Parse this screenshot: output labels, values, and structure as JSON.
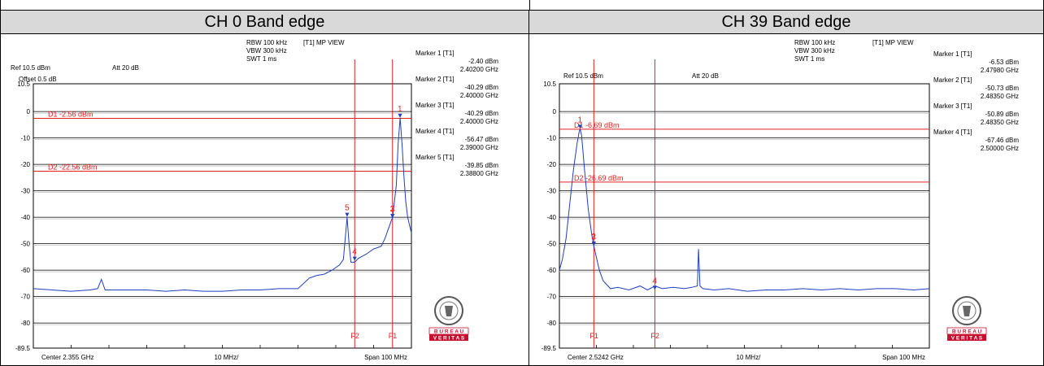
{
  "panels": [
    {
      "title": "CH 0 Band edge",
      "header": {
        "rbw": "RBW 100 kHz",
        "vbw": "VBW 300 kHz",
        "swt": "SWT 1 ms",
        "view": "[T1] MP VIEW",
        "ref": "Ref 10.5 dBm",
        "att": "Att 20 dB",
        "offset": "Offset 0.5 dB"
      },
      "footer": {
        "center": "Center 2.355 GHz",
        "div": "10 MHz/",
        "span": "Span 100 MHz"
      },
      "markers": [
        {
          "label": "Marker 1 [T1]",
          "level": "-2.40 dBm",
          "freq": "2.40200 GHz"
        },
        {
          "label": "Marker 2 [T1]",
          "level": "-40.29 dBm",
          "freq": "2.40000 GHz"
        },
        {
          "label": "Marker 3 [T1]",
          "level": "-40.29 dBm",
          "freq": "2.40000 GHz"
        },
        {
          "label": "Marker 4 [T1]",
          "level": "-56.47 dBm",
          "freq": "2.39000 GHz"
        },
        {
          "label": "Marker 5 [T1]",
          "level": "-39.85 dBm",
          "freq": "2.38800 GHz"
        }
      ],
      "logo": {
        "line1": "B U R E A U",
        "line2": "V E R I T A S",
        "seal": "BUREAU VERITAS 1828"
      }
    },
    {
      "title": "CH 39 Band edge",
      "header": {
        "rbw": "RBW 100 kHz",
        "vbw": "VBW 300 kHz",
        "swt": "SWT 1 ms",
        "view": "[T1] MP VIEW",
        "ref": "Ref 10.5 dBm",
        "att": "Att 20 dB",
        "offset": "Offset 0.5 dB"
      },
      "footer": {
        "center": "Center 2.5242 GHz",
        "div": "10 MHz/",
        "span": "Span 100 MHz"
      },
      "markers": [
        {
          "label": "Marker 1 [T1]",
          "level": "-6.53 dBm",
          "freq": "2.47980 GHz"
        },
        {
          "label": "Marker 2 [T1]",
          "level": "-50.73 dBm",
          "freq": "2.48350 GHz"
        },
        {
          "label": "Marker 3 [T1]",
          "level": "-50.89 dBm",
          "freq": "2.48350 GHz"
        },
        {
          "label": "Marker 4 [T1]",
          "level": "-67.46 dBm",
          "freq": "2.50000 GHz"
        }
      ],
      "logo": {
        "line1": "B U R E A U",
        "line2": "V E R I T A S",
        "seal": "BUREAU VERITAS 1828"
      }
    }
  ],
  "colors": {
    "trace": "#1f3fbf",
    "marker": "#e02020",
    "header": "#d9d9d9",
    "logo": "#c8102e"
  },
  "chart_data": [
    {
      "type": "line",
      "title": "CH 0 Band edge",
      "xlabel": "",
      "ylabel": "",
      "ylim": [
        -89.5,
        10.5
      ],
      "yticks": [
        "10.5",
        "0",
        "-10",
        "-20",
        "-30",
        "-40",
        "-50",
        "-60",
        "-70",
        "-80",
        "-89.5"
      ],
      "ytick_values": [
        10.5,
        0,
        -10,
        -20,
        -30,
        -40,
        -50,
        -60,
        -70,
        -80,
        -89.5
      ],
      "xlim": [
        2305,
        2405
      ],
      "x_unit": "MHz",
      "grid": true,
      "display_lines": [
        {
          "label": "D1 -2.56 dBm",
          "value": -2.56
        },
        {
          "label": "D2 -22.56 dBm",
          "value": -22.56
        }
      ],
      "freq_lines": [
        {
          "label": "F2",
          "x": 2390
        },
        {
          "label": "F1",
          "x": 2400
        }
      ],
      "marker_points": [
        {
          "label": "1",
          "x": 2402.0,
          "y": -2.4
        },
        {
          "label": "2",
          "x": 2400.0,
          "y": -40.29
        },
        {
          "label": "3",
          "x": 2400.0,
          "y": -40.29
        },
        {
          "label": "4",
          "x": 2390.0,
          "y": -56.47
        },
        {
          "label": "5",
          "x": 2388.0,
          "y": -39.85
        }
      ],
      "series": [
        {
          "x": [
            2305,
            2310,
            2315,
            2320,
            2322,
            2323,
            2324,
            2330,
            2335,
            2340,
            2345,
            2350,
            2355,
            2360,
            2365,
            2370,
            2375,
            2378,
            2380,
            2382,
            2384,
            2386,
            2387,
            2387.5,
            2388,
            2388.5,
            2389,
            2390,
            2391,
            2393,
            2395,
            2397,
            2398,
            2399,
            2400,
            2401,
            2401.5,
            2402,
            2402.5,
            2403,
            2403.5,
            2404,
            2405
          ],
          "y": [
            -67,
            -67.5,
            -68,
            -67.5,
            -67,
            -63.5,
            -67.5,
            -67.5,
            -67.5,
            -68,
            -67.5,
            -68,
            -68,
            -67.5,
            -67.5,
            -67,
            -67,
            -63,
            -62,
            -61.5,
            -60,
            -58,
            -56,
            -48,
            -40,
            -50,
            -57,
            -57,
            -55.5,
            -54,
            -52,
            -51,
            -48,
            -44,
            -40,
            -28,
            -12,
            -2.4,
            -12,
            -24,
            -34,
            -40,
            -46
          ]
        }
      ]
    },
    {
      "type": "line",
      "title": "CH 39 Band edge",
      "xlabel": "",
      "ylabel": "",
      "ylim": [
        -89.5,
        10.5
      ],
      "yticks": [
        "10.5",
        "0",
        "-10",
        "-20",
        "-30",
        "-40",
        "-50",
        "-60",
        "-70",
        "-80",
        "-89.5"
      ],
      "ytick_values": [
        10.5,
        0,
        -10,
        -20,
        -30,
        -40,
        -50,
        -60,
        -70,
        -80,
        -89.5
      ],
      "xlim": [
        2474.2,
        2574.2
      ],
      "x_unit": "MHz",
      "grid": true,
      "display_lines": [
        {
          "label": "D1 -6.69 dBm",
          "value": -6.69
        },
        {
          "label": "D2 -26.69 dBm",
          "value": -26.69
        }
      ],
      "freq_lines": [
        {
          "label": "F1",
          "x": 2483.5
        },
        {
          "label": "F2",
          "x": 2500
        }
      ],
      "marker_points": [
        {
          "label": "1",
          "x": 2479.8,
          "y": -6.53
        },
        {
          "label": "2",
          "x": 2483.5,
          "y": -50.73
        },
        {
          "label": "3",
          "x": 2483.5,
          "y": -50.89
        },
        {
          "label": "4",
          "x": 2500.0,
          "y": -67.46
        }
      ],
      "series": [
        {
          "x": [
            2474.2,
            2475,
            2476,
            2477,
            2478,
            2479,
            2479.5,
            2479.8,
            2480.2,
            2481,
            2482,
            2483,
            2483.5,
            2484,
            2485,
            2486,
            2488,
            2490,
            2493,
            2496,
            2498,
            2500,
            2502,
            2505,
            2508,
            2510,
            2511.5,
            2511.8,
            2512.2,
            2513,
            2516,
            2520,
            2525,
            2530,
            2535,
            2540,
            2545,
            2550,
            2555,
            2560,
            2565,
            2570,
            2574.2
          ],
          "y": [
            -60,
            -56,
            -48,
            -35,
            -22,
            -12,
            -8,
            -6.53,
            -9,
            -22,
            -37,
            -47,
            -50.7,
            -54,
            -60,
            -64,
            -67,
            -66.5,
            -67.5,
            -66,
            -67.5,
            -66,
            -67,
            -66.5,
            -67,
            -66.5,
            -66,
            -52,
            -66,
            -67,
            -67.5,
            -67,
            -68,
            -67.5,
            -67.5,
            -67,
            -67.5,
            -67,
            -67.5,
            -67,
            -67,
            -67.5,
            -67
          ]
        }
      ]
    }
  ]
}
